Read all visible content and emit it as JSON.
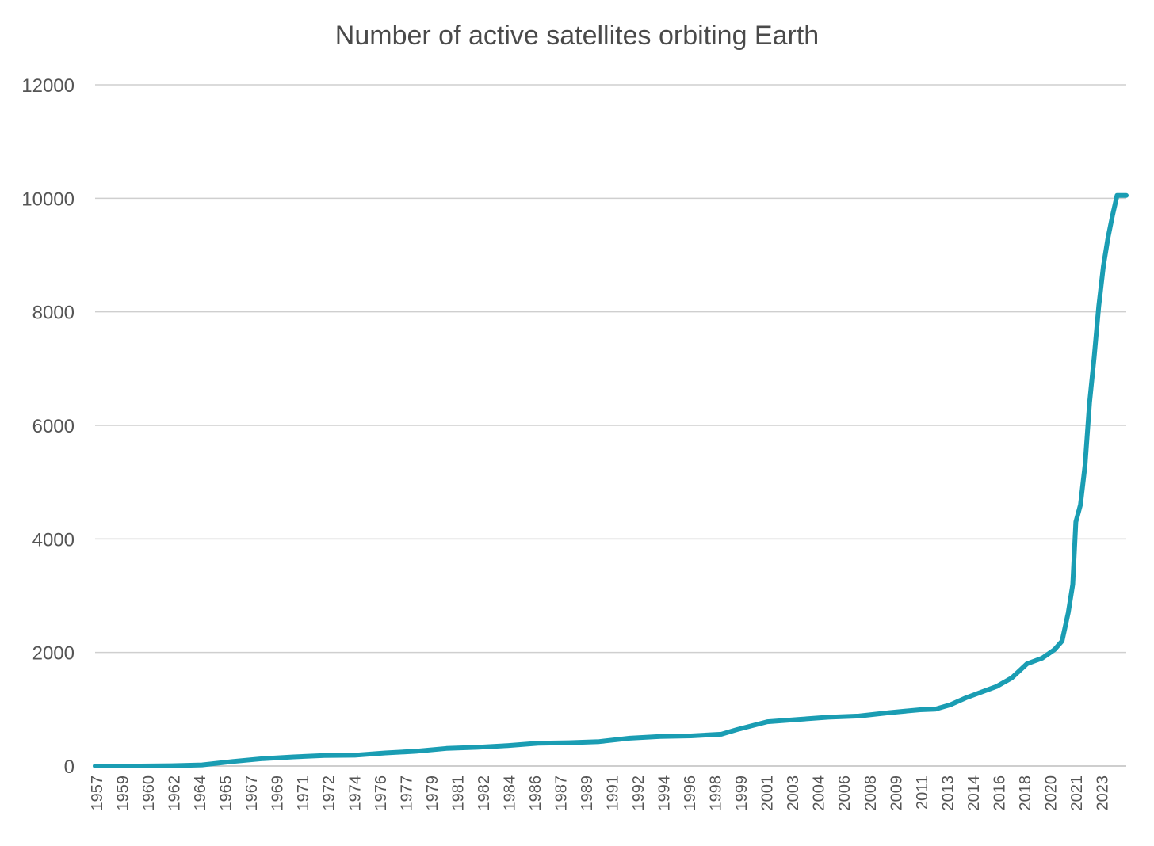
{
  "chart_data": {
    "type": "line",
    "title": "Number of active satellites orbiting Earth",
    "xlabel": "",
    "ylabel": "",
    "ylim": [
      0,
      12000
    ],
    "y_ticks": [
      0,
      2000,
      4000,
      6000,
      8000,
      10000,
      12000
    ],
    "x_tick_labels": [
      "1957",
      "1959",
      "1960",
      "1962",
      "1964",
      "1965",
      "1967",
      "1969",
      "1971",
      "1972",
      "1974",
      "1976",
      "1977",
      "1979",
      "1981",
      "1982",
      "1984",
      "1986",
      "1987",
      "1989",
      "1991",
      "1992",
      "1994",
      "1996",
      "1998",
      "1999",
      "2001",
      "2003",
      "2004",
      "2006",
      "2008",
      "2009",
      "2011",
      "2013",
      "2014",
      "2016",
      "2018",
      "2020",
      "2021",
      "2023"
    ],
    "grid": "horizontal",
    "legend": "none",
    "line_color": "#1a9db3",
    "series": [
      {
        "x": [
          1957,
          1960,
          1962,
          1964,
          1966,
          1968,
          1970,
          1972,
          1974,
          1976,
          1978,
          1980,
          1982,
          1984,
          1986,
          1988,
          1990,
          1992,
          1994,
          1996,
          1998,
          1999,
          2001,
          2003,
          2005,
          2007,
          2009,
          2011,
          2012,
          2013,
          2014,
          2015,
          2016,
          2017,
          2018,
          2019,
          2019.8,
          2020.3,
          2020.7,
          2021.0,
          2021.2,
          2021.5,
          2021.8,
          2022.1,
          2022.4,
          2022.7,
          2023.0,
          2023.3,
          2023.6,
          2023.9,
          2024.2,
          2024.5
        ],
        "y": [
          0,
          0,
          5,
          20,
          80,
          130,
          160,
          185,
          190,
          230,
          260,
          310,
          330,
          360,
          400,
          410,
          430,
          490,
          520,
          530,
          560,
          640,
          780,
          820,
          860,
          880,
          940,
          990,
          1000,
          1080,
          1200,
          1300,
          1400,
          1550,
          1800,
          1900,
          2050,
          2200,
          2700,
          3200,
          4300,
          4600,
          5300,
          6400,
          7200,
          8100,
          8800,
          9300,
          9700,
          10050,
          10050,
          10050
        ]
      }
    ]
  }
}
